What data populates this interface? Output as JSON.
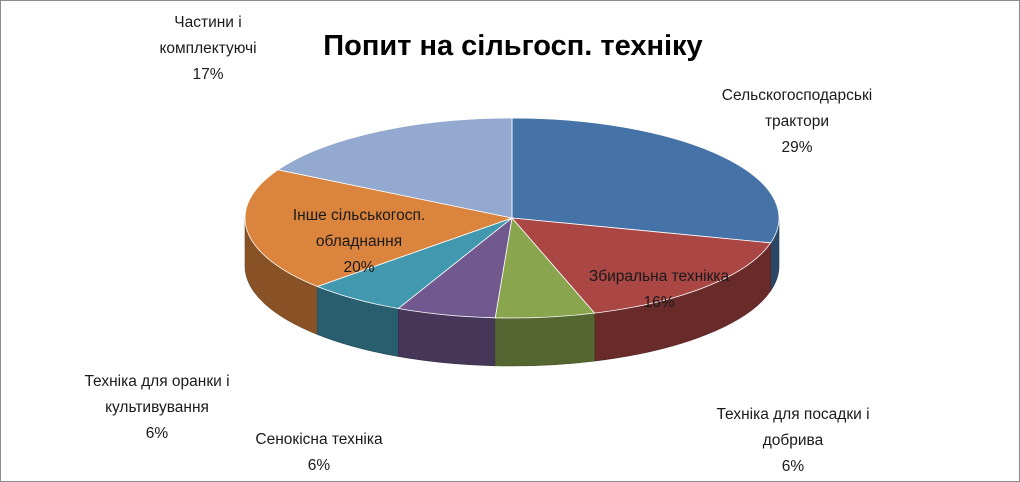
{
  "chart_data": {
    "type": "pie",
    "title": "Попит на сільгосп. техніку",
    "three_d": true,
    "legend": "none",
    "slices": [
      {
        "label_lines": [
          "Сельскогосподарські",
          "трактори"
        ],
        "value": 29,
        "value_label": "29%",
        "color": "#4572A7"
      },
      {
        "label_lines": [
          "Збиральна технікка"
        ],
        "value": 16,
        "value_label": "16%",
        "color": "#AA4643"
      },
      {
        "label_lines": [
          "Техніка для посадки і",
          "добрива"
        ],
        "value": 6,
        "value_label": "6%",
        "color": "#89A54E"
      },
      {
        "label_lines": [
          "Сенокісна техніка"
        ],
        "value": 6,
        "value_label": "6%",
        "color": "#71588F"
      },
      {
        "label_lines": [
          "Техніка для оранки і",
          "культивування"
        ],
        "value": 6,
        "value_label": "6%",
        "color": "#4198AF"
      },
      {
        "label_lines": [
          "Інше сільськогосп.",
          "обладнання"
        ],
        "value": 20,
        "value_label": "20%",
        "color": "#DB843D"
      },
      {
        "label_lines": [
          "Частини і",
          "комплектуючі"
        ],
        "value": 17,
        "value_label": "17%",
        "color": "#93A9CF"
      }
    ]
  }
}
